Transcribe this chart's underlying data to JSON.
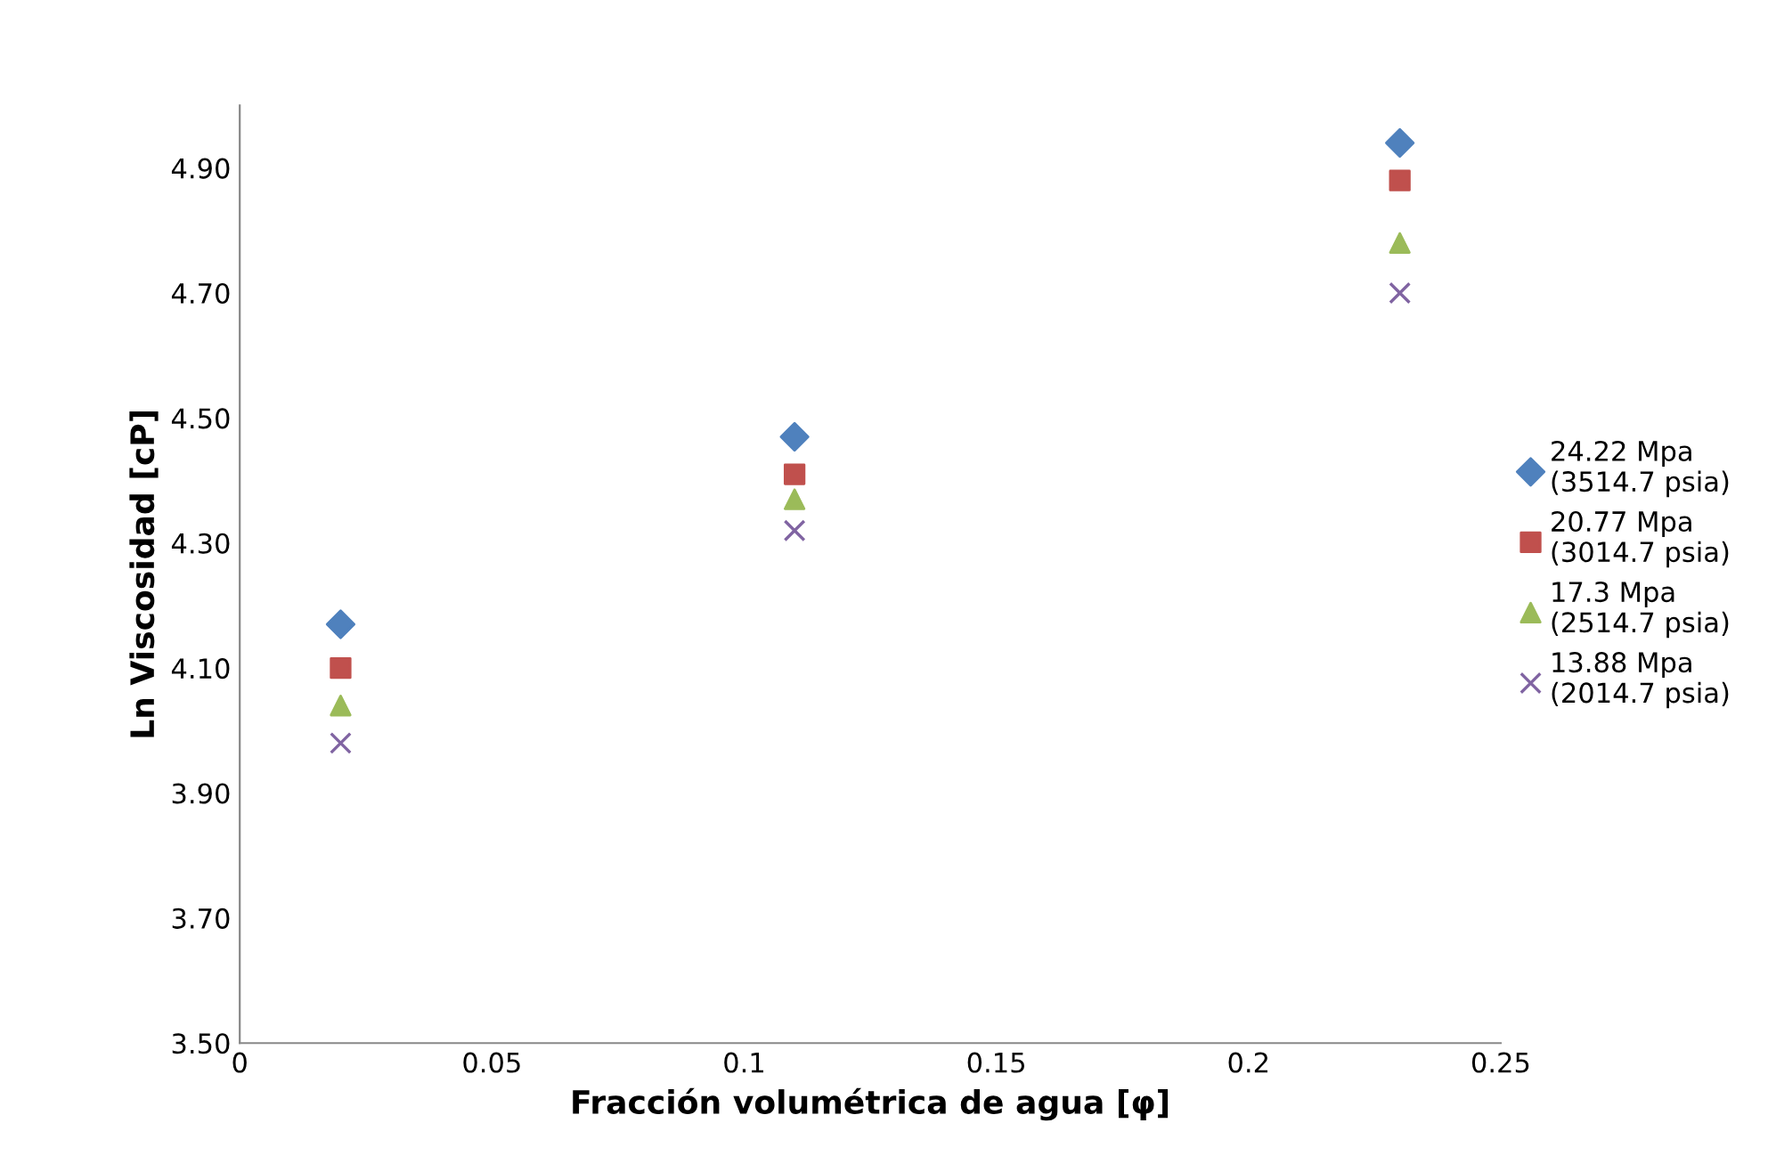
{
  "chart_data": {
    "type": "scatter",
    "xlabel": "Fracción volumétrica de agua [φ]",
    "ylabel": "Ln Viscosidad [cP]",
    "x": [
      0.02,
      0.11,
      0.23
    ],
    "series": [
      {
        "name": "24.22 Mpa\n(3514.7 psia)",
        "color": "#4f81bd",
        "marker": "diamond",
        "values": [
          4.17,
          4.47,
          4.94
        ]
      },
      {
        "name": "20.77 Mpa\n(3014.7 psia)",
        "color": "#c0504d",
        "marker": "square",
        "values": [
          4.1,
          4.41,
          4.88
        ]
      },
      {
        "name": "17.3 Mpa\n(2514.7 psia)",
        "color": "#9bbb59",
        "marker": "triangle",
        "values": [
          4.04,
          4.37,
          4.78
        ]
      },
      {
        "name": "13.88 Mpa\n(2014.7 psia)",
        "color": "#8064a2",
        "marker": "cross",
        "values": [
          3.98,
          4.32,
          4.7
        ]
      }
    ],
    "xlim": [
      0,
      0.25
    ],
    "xticks": [
      0,
      0.05,
      0.1,
      0.15,
      0.2,
      0.25
    ],
    "ylim": [
      3.5,
      5.0
    ],
    "yticks": [
      {
        "value": 3.5,
        "label": "3.50"
      },
      {
        "value": 3.7,
        "label": "3.70"
      },
      {
        "value": 3.9,
        "label": "3.90"
      },
      {
        "value": 4.1,
        "label": "4.10"
      },
      {
        "value": 4.3,
        "label": "4.30"
      },
      {
        "value": 4.5,
        "label": "4.50"
      },
      {
        "value": 4.7,
        "label": "4.70"
      },
      {
        "value": 4.9,
        "label": "4.90"
      }
    ],
    "grid": false,
    "legend": "right"
  }
}
